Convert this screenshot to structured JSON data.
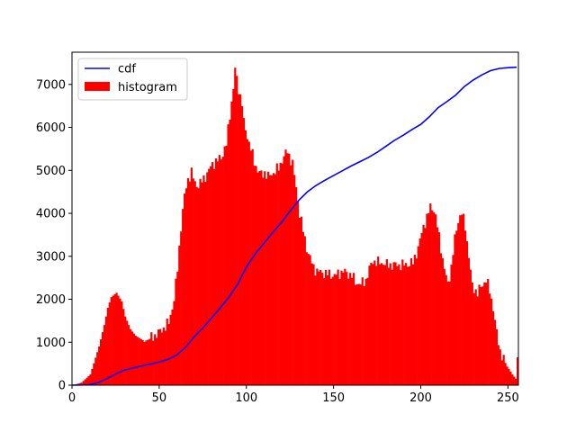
{
  "chart_data": {
    "type": "bar",
    "title": "",
    "xlabel": "",
    "ylabel": "",
    "xlim": [
      0,
      256
    ],
    "ylim": [
      0,
      7750
    ],
    "grid": false,
    "legend_position": "top-left",
    "x_ticks": [
      {
        "value": 0,
        "label": "0"
      },
      {
        "value": 50,
        "label": "50"
      },
      {
        "value": 100,
        "label": "100"
      },
      {
        "value": 150,
        "label": "150"
      },
      {
        "value": 200,
        "label": "200"
      },
      {
        "value": 250,
        "label": "250"
      }
    ],
    "y_ticks": [
      {
        "value": 0,
        "label": "0"
      },
      {
        "value": 1000,
        "label": "1000"
      },
      {
        "value": 2000,
        "label": "2000"
      },
      {
        "value": 3000,
        "label": "3000"
      },
      {
        "value": 4000,
        "label": "4000"
      },
      {
        "value": 5000,
        "label": "5000"
      },
      {
        "value": 6000,
        "label": "6000"
      },
      {
        "value": 7000,
        "label": "7000"
      }
    ],
    "series": [
      {
        "name": "cdf",
        "type": "line",
        "color": "#0000ff",
        "points": [
          [
            0,
            0
          ],
          [
            10,
            10
          ],
          [
            15,
            60
          ],
          [
            20,
            150
          ],
          [
            25,
            260
          ],
          [
            30,
            350
          ],
          [
            35,
            400
          ],
          [
            40,
            450
          ],
          [
            45,
            490
          ],
          [
            50,
            540
          ],
          [
            55,
            600
          ],
          [
            60,
            700
          ],
          [
            65,
            880
          ],
          [
            70,
            1120
          ],
          [
            75,
            1330
          ],
          [
            80,
            1560
          ],
          [
            85,
            1800
          ],
          [
            90,
            2050
          ],
          [
            95,
            2350
          ],
          [
            100,
            2750
          ],
          [
            105,
            3050
          ],
          [
            110,
            3300
          ],
          [
            115,
            3550
          ],
          [
            120,
            3780
          ],
          [
            125,
            4050
          ],
          [
            130,
            4300
          ],
          [
            135,
            4500
          ],
          [
            140,
            4650
          ],
          [
            145,
            4770
          ],
          [
            150,
            4880
          ],
          [
            155,
            4990
          ],
          [
            160,
            5100
          ],
          [
            165,
            5200
          ],
          [
            170,
            5300
          ],
          [
            175,
            5420
          ],
          [
            180,
            5560
          ],
          [
            185,
            5700
          ],
          [
            190,
            5820
          ],
          [
            195,
            5950
          ],
          [
            200,
            6070
          ],
          [
            205,
            6250
          ],
          [
            210,
            6460
          ],
          [
            215,
            6600
          ],
          [
            220,
            6750
          ],
          [
            225,
            6950
          ],
          [
            230,
            7100
          ],
          [
            235,
            7220
          ],
          [
            240,
            7320
          ],
          [
            245,
            7370
          ],
          [
            250,
            7390
          ],
          [
            255,
            7400
          ]
        ]
      },
      {
        "name": "histogram",
        "type": "bar",
        "color": "#ff0000",
        "bin_width": 1,
        "anchors": [
          [
            0,
            0
          ],
          [
            5,
            60
          ],
          [
            10,
            250
          ],
          [
            15,
            900
          ],
          [
            18,
            1400
          ],
          [
            20,
            1800
          ],
          [
            22,
            2050
          ],
          [
            25,
            2150
          ],
          [
            28,
            1950
          ],
          [
            30,
            1600
          ],
          [
            33,
            1300
          ],
          [
            36,
            1150
          ],
          [
            40,
            1050
          ],
          [
            45,
            1100
          ],
          [
            50,
            1250
          ],
          [
            55,
            1450
          ],
          [
            58,
            2000
          ],
          [
            60,
            2700
          ],
          [
            62,
            3700
          ],
          [
            64,
            4400
          ],
          [
            66,
            4800
          ],
          [
            68,
            4950
          ],
          [
            70,
            4700
          ],
          [
            72,
            4650
          ],
          [
            75,
            4800
          ],
          [
            78,
            5000
          ],
          [
            80,
            5150
          ],
          [
            82,
            5200
          ],
          [
            85,
            5300
          ],
          [
            88,
            5600
          ],
          [
            90,
            6300
          ],
          [
            92,
            6900
          ],
          [
            93,
            7350
          ],
          [
            95,
            6900
          ],
          [
            97,
            6550
          ],
          [
            98,
            6100
          ],
          [
            100,
            5800
          ],
          [
            102,
            5500
          ],
          [
            104,
            5200
          ],
          [
            106,
            5000
          ],
          [
            108,
            4900
          ],
          [
            110,
            4950
          ],
          [
            112,
            4850
          ],
          [
            115,
            4950
          ],
          [
            118,
            5050
          ],
          [
            120,
            5250
          ],
          [
            123,
            5450
          ],
          [
            126,
            5150
          ],
          [
            128,
            4600
          ],
          [
            130,
            4000
          ],
          [
            132,
            3600
          ],
          [
            134,
            3200
          ],
          [
            136,
            2950
          ],
          [
            138,
            2750
          ],
          [
            140,
            2650
          ],
          [
            145,
            2600
          ],
          [
            150,
            2550
          ],
          [
            155,
            2650
          ],
          [
            160,
            2550
          ],
          [
            162,
            2400
          ],
          [
            165,
            2350
          ],
          [
            168,
            2450
          ],
          [
            170,
            2700
          ],
          [
            172,
            2900
          ],
          [
            175,
            2850
          ],
          [
            178,
            2850
          ],
          [
            180,
            2800
          ],
          [
            185,
            2800
          ],
          [
            190,
            2800
          ],
          [
            195,
            2850
          ],
          [
            198,
            3200
          ],
          [
            201,
            3700
          ],
          [
            203,
            3900
          ],
          [
            205,
            4150
          ],
          [
            207,
            4100
          ],
          [
            209,
            3700
          ],
          [
            211,
            3200
          ],
          [
            213,
            2700
          ],
          [
            215,
            2350
          ],
          [
            217,
            2750
          ],
          [
            219,
            3400
          ],
          [
            221,
            3850
          ],
          [
            223,
            4000
          ],
          [
            225,
            3700
          ],
          [
            227,
            3000
          ],
          [
            229,
            2300
          ],
          [
            232,
            2150
          ],
          [
            235,
            2350
          ],
          [
            237,
            2450
          ],
          [
            239,
            2200
          ],
          [
            241,
            1800
          ],
          [
            243,
            1200
          ],
          [
            245,
            800
          ],
          [
            248,
            500
          ],
          [
            250,
            380
          ],
          [
            252,
            250
          ],
          [
            254,
            150
          ],
          [
            255,
            650
          ]
        ]
      }
    ]
  }
}
